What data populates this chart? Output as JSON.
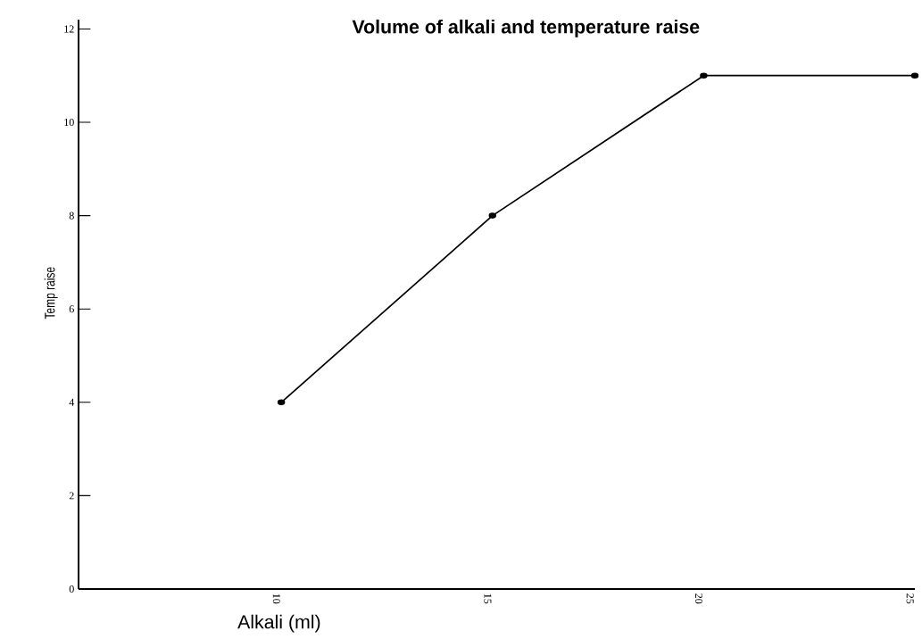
{
  "chart_data": {
    "type": "line",
    "title": "Volume of alkali and temperature raise",
    "xlabel": "Alkali (ml)",
    "ylabel": "Temp raise",
    "x": [
      10,
      15,
      20,
      25
    ],
    "values": [
      4,
      8,
      11,
      11
    ],
    "color": "#000000",
    "marker": "circle",
    "line_style": "solid",
    "xlim": [
      5.2,
      25
    ],
    "xticks": [
      10,
      15,
      20,
      25
    ],
    "ylim": [
      0,
      12.2
    ],
    "yticks": [
      0,
      2,
      4,
      6,
      8,
      10,
      12
    ]
  }
}
